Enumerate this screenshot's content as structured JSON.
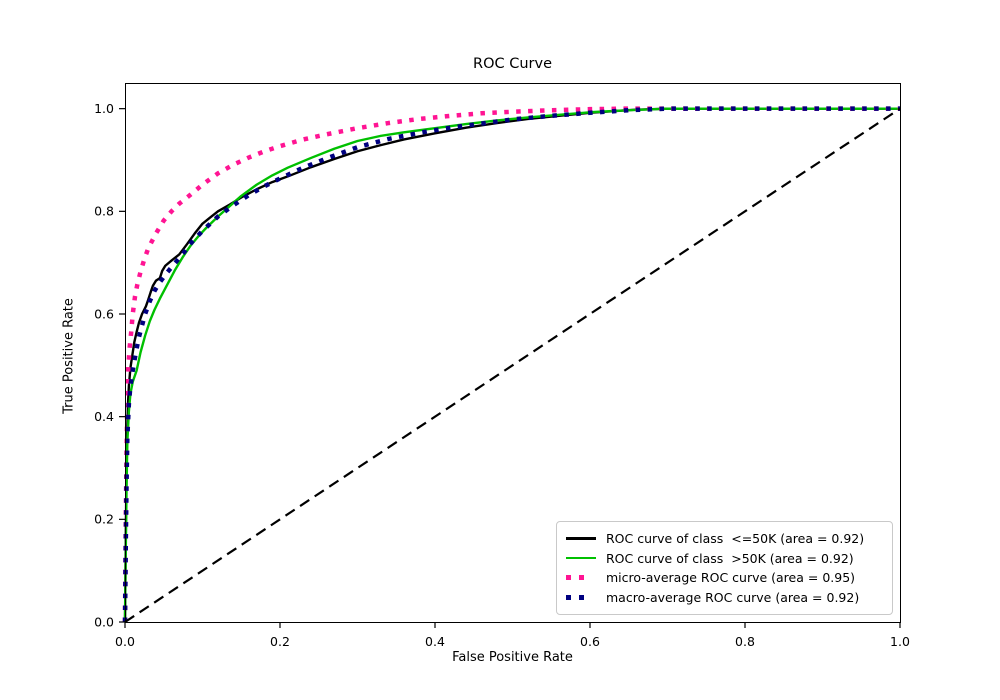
{
  "figure": {
    "background": "#ffffff"
  },
  "chart_data": {
    "type": "line",
    "title": "ROC Curve",
    "xlabel": "False Positive Rate",
    "ylabel": "True Positive Rate",
    "xlim": [
      0.0,
      1.0
    ],
    "ylim": [
      0.0,
      1.05
    ],
    "xtick_values": [
      0.0,
      0.2,
      0.4,
      0.6,
      0.8,
      1.0
    ],
    "xtick_labels": [
      "0.0",
      "0.2",
      "0.4",
      "0.6",
      "0.8",
      "1.0"
    ],
    "ytick_values": [
      0.0,
      0.2,
      0.4,
      0.6,
      0.8,
      1.0
    ],
    "ytick_labels": [
      "0.0",
      "0.2",
      "0.4",
      "0.6",
      "0.8",
      "1.0"
    ],
    "grid": false,
    "legend_position": "lower right",
    "series": [
      {
        "name": "ROC curve of class  <=50K (area = 0.92)",
        "auc": 0.92,
        "color": "#000000",
        "linestyle": "solid",
        "linewidth": 2.4,
        "points": [
          [
            0,
            0
          ],
          [
            0.001,
            0.17
          ],
          [
            0.002,
            0.3
          ],
          [
            0.003,
            0.38
          ],
          [
            0.004,
            0.43
          ],
          [
            0.005,
            0.46
          ],
          [
            0.007,
            0.495
          ],
          [
            0.009,
            0.515
          ],
          [
            0.012,
            0.545
          ],
          [
            0.015,
            0.565
          ],
          [
            0.018,
            0.583
          ],
          [
            0.022,
            0.6
          ],
          [
            0.027,
            0.615
          ],
          [
            0.03,
            0.628
          ],
          [
            0.033,
            0.642
          ],
          [
            0.036,
            0.655
          ],
          [
            0.04,
            0.665
          ],
          [
            0.045,
            0.67
          ],
          [
            0.048,
            0.684
          ],
          [
            0.052,
            0.694
          ],
          [
            0.06,
            0.704
          ],
          [
            0.07,
            0.716
          ],
          [
            0.08,
            0.736
          ],
          [
            0.09,
            0.757
          ],
          [
            0.1,
            0.776
          ],
          [
            0.11,
            0.788
          ],
          [
            0.12,
            0.8
          ],
          [
            0.135,
            0.813
          ],
          [
            0.15,
            0.827
          ],
          [
            0.17,
            0.843
          ],
          [
            0.19,
            0.857
          ],
          [
            0.21,
            0.868
          ],
          [
            0.24,
            0.886
          ],
          [
            0.27,
            0.902
          ],
          [
            0.3,
            0.917
          ],
          [
            0.33,
            0.929
          ],
          [
            0.36,
            0.94
          ],
          [
            0.4,
            0.952
          ],
          [
            0.44,
            0.963
          ],
          [
            0.48,
            0.972
          ],
          [
            0.52,
            0.98
          ],
          [
            0.56,
            0.986
          ],
          [
            0.6,
            0.992
          ],
          [
            0.63,
            0.995
          ],
          [
            0.66,
            0.998
          ],
          [
            0.7,
            1.0
          ],
          [
            1.0,
            1.0
          ]
        ]
      },
      {
        "name": "ROC curve of class  >50K (area = 0.92)",
        "auc": 0.92,
        "color": "#00c000",
        "linestyle": "solid",
        "linewidth": 2.4,
        "points": [
          [
            0,
            0
          ],
          [
            0.001,
            0.14
          ],
          [
            0.002,
            0.26
          ],
          [
            0.003,
            0.35
          ],
          [
            0.005,
            0.41
          ],
          [
            0.007,
            0.445
          ],
          [
            0.01,
            0.468
          ],
          [
            0.015,
            0.49
          ],
          [
            0.02,
            0.525
          ],
          [
            0.026,
            0.558
          ],
          [
            0.032,
            0.586
          ],
          [
            0.038,
            0.608
          ],
          [
            0.045,
            0.63
          ],
          [
            0.052,
            0.65
          ],
          [
            0.058,
            0.667
          ],
          [
            0.065,
            0.687
          ],
          [
            0.075,
            0.712
          ],
          [
            0.085,
            0.734
          ],
          [
            0.095,
            0.752
          ],
          [
            0.105,
            0.768
          ],
          [
            0.12,
            0.79
          ],
          [
            0.135,
            0.81
          ],
          [
            0.15,
            0.83
          ],
          [
            0.17,
            0.852
          ],
          [
            0.19,
            0.87
          ],
          [
            0.21,
            0.885
          ],
          [
            0.24,
            0.904
          ],
          [
            0.27,
            0.922
          ],
          [
            0.3,
            0.937
          ],
          [
            0.33,
            0.947
          ],
          [
            0.36,
            0.954
          ],
          [
            0.4,
            0.962
          ],
          [
            0.44,
            0.97
          ],
          [
            0.48,
            0.977
          ],
          [
            0.52,
            0.983
          ],
          [
            0.56,
            0.988
          ],
          [
            0.6,
            0.993
          ],
          [
            0.65,
            0.997
          ],
          [
            0.7,
            1.0
          ],
          [
            1.0,
            1.0
          ]
        ]
      },
      {
        "name": "micro-average ROC curve (area = 0.95)",
        "auc": 0.95,
        "color": "#ff1493",
        "linestyle": "dotted",
        "linewidth": 4.5,
        "points": [
          [
            0,
            0
          ],
          [
            0.001,
            0.2
          ],
          [
            0.002,
            0.33
          ],
          [
            0.003,
            0.43
          ],
          [
            0.004,
            0.49
          ],
          [
            0.006,
            0.535
          ],
          [
            0.008,
            0.565
          ],
          [
            0.01,
            0.6
          ],
          [
            0.013,
            0.635
          ],
          [
            0.016,
            0.658
          ],
          [
            0.02,
            0.682
          ],
          [
            0.025,
            0.707
          ],
          [
            0.03,
            0.728
          ],
          [
            0.04,
            0.757
          ],
          [
            0.05,
            0.782
          ],
          [
            0.06,
            0.8
          ],
          [
            0.07,
            0.815
          ],
          [
            0.085,
            0.833
          ],
          [
            0.1,
            0.852
          ],
          [
            0.12,
            0.874
          ],
          [
            0.14,
            0.891
          ],
          [
            0.16,
            0.905
          ],
          [
            0.18,
            0.917
          ],
          [
            0.2,
            0.927
          ],
          [
            0.23,
            0.94
          ],
          [
            0.26,
            0.95
          ],
          [
            0.3,
            0.962
          ],
          [
            0.34,
            0.972
          ],
          [
            0.38,
            0.98
          ],
          [
            0.42,
            0.986
          ],
          [
            0.46,
            0.991
          ],
          [
            0.5,
            0.994
          ],
          [
            0.55,
            0.997
          ],
          [
            0.6,
            0.999
          ],
          [
            0.64,
            1.0
          ],
          [
            1.0,
            1.0
          ]
        ]
      },
      {
        "name": "macro-average ROC curve (area = 0.92)",
        "auc": 0.92,
        "color": "#000080",
        "linestyle": "dotted",
        "linewidth": 4.5,
        "points": [
          [
            0,
            0
          ],
          [
            0.001,
            0.15
          ],
          [
            0.002,
            0.27
          ],
          [
            0.003,
            0.36
          ],
          [
            0.005,
            0.425
          ],
          [
            0.007,
            0.46
          ],
          [
            0.01,
            0.49
          ],
          [
            0.014,
            0.525
          ],
          [
            0.018,
            0.555
          ],
          [
            0.022,
            0.578
          ],
          [
            0.026,
            0.6
          ],
          [
            0.032,
            0.625
          ],
          [
            0.038,
            0.645
          ],
          [
            0.045,
            0.662
          ],
          [
            0.055,
            0.682
          ],
          [
            0.065,
            0.7
          ],
          [
            0.075,
            0.718
          ],
          [
            0.085,
            0.738
          ],
          [
            0.1,
            0.762
          ],
          [
            0.12,
            0.79
          ],
          [
            0.14,
            0.812
          ],
          [
            0.16,
            0.832
          ],
          [
            0.18,
            0.849
          ],
          [
            0.2,
            0.864
          ],
          [
            0.23,
            0.885
          ],
          [
            0.26,
            0.903
          ],
          [
            0.3,
            0.925
          ],
          [
            0.34,
            0.941
          ],
          [
            0.38,
            0.953
          ],
          [
            0.42,
            0.963
          ],
          [
            0.46,
            0.971
          ],
          [
            0.5,
            0.979
          ],
          [
            0.55,
            0.986
          ],
          [
            0.6,
            0.992
          ],
          [
            0.65,
            0.997
          ],
          [
            0.7,
            1.0
          ],
          [
            1.0,
            1.0
          ]
        ]
      }
    ],
    "reference_line": {
      "name": "chance-diagonal",
      "color": "#000000",
      "linestyle": "dashed",
      "linewidth": 2.2,
      "points": [
        [
          0,
          0
        ],
        [
          1,
          1
        ]
      ]
    }
  }
}
